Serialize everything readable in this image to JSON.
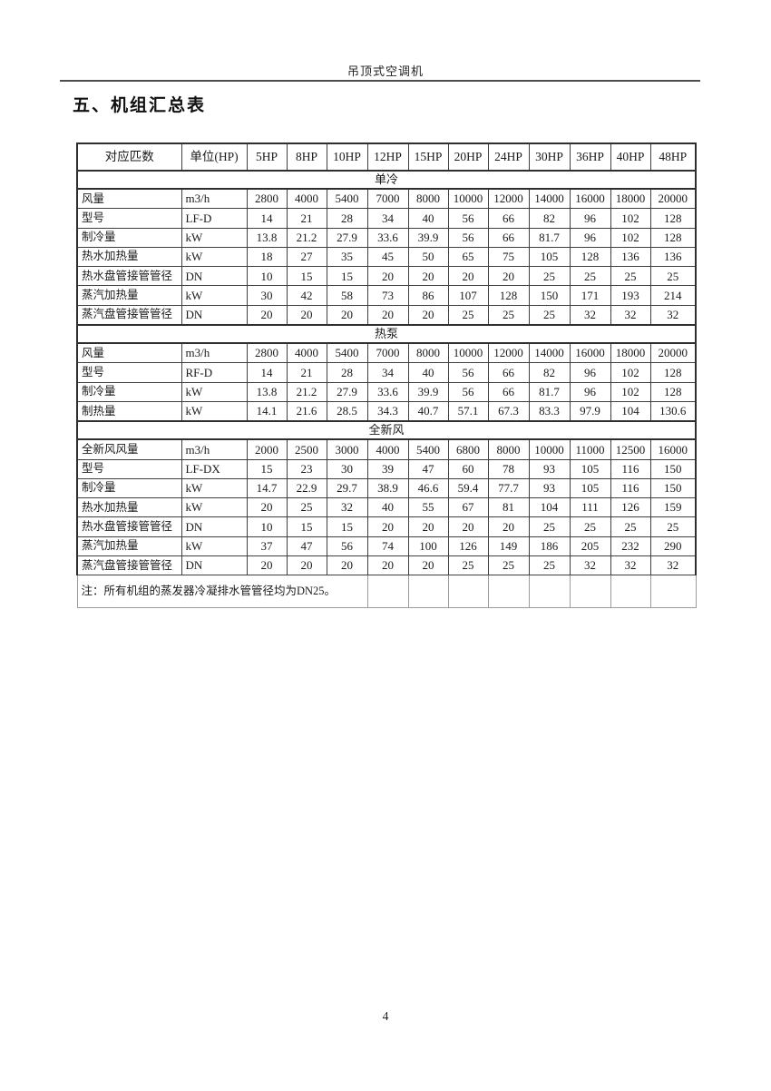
{
  "page_header": {
    "title": "吊顶式空调机"
  },
  "section_title": "五、机组汇总表",
  "footer": {
    "page_number": "4"
  },
  "colors": {
    "border_dark": "#2e2e2e",
    "border_inner": "#3f3f3f",
    "border_note": "#9c9c9c",
    "text": "#1b1b1b"
  },
  "table": {
    "header": {
      "col0": "对应匹数",
      "col1": "单位(HP)",
      "hp_columns": [
        "5HP",
        "8HP",
        "10HP",
        "12HP",
        "15HP",
        "20HP",
        "24HP",
        "30HP",
        "36HP",
        "40HP",
        "48HP"
      ]
    },
    "sections": [
      {
        "title": "单冷",
        "rows": [
          {
            "label": "风量",
            "unit": "m3/h",
            "values": [
              "2800",
              "4000",
              "5400",
              "7000",
              "8000",
              "10000",
              "12000",
              "14000",
              "16000",
              "18000",
              "20000"
            ]
          },
          {
            "label": "型号",
            "unit": "LF-D",
            "values": [
              "14",
              "21",
              "28",
              "34",
              "40",
              "56",
              "66",
              "82",
              "96",
              "102",
              "128"
            ]
          },
          {
            "label": "制冷量",
            "unit": "kW",
            "values": [
              "13.8",
              "21.2",
              "27.9",
              "33.6",
              "39.9",
              "56",
              "66",
              "81.7",
              "96",
              "102",
              "128"
            ]
          },
          {
            "label": "热水加热量",
            "unit": "kW",
            "values": [
              "18",
              "27",
              "35",
              "45",
              "50",
              "65",
              "75",
              "105",
              "128",
              "136",
              "136"
            ]
          },
          {
            "label": "热水盘管接管管径",
            "unit": "DN",
            "values": [
              "10",
              "15",
              "15",
              "20",
              "20",
              "20",
              "20",
              "25",
              "25",
              "25",
              "25"
            ]
          },
          {
            "label": "蒸汽加热量",
            "unit": "kW",
            "values": [
              "30",
              "42",
              "58",
              "73",
              "86",
              "107",
              "128",
              "150",
              "171",
              "193",
              "214"
            ]
          },
          {
            "label": "蒸汽盘管接管管径",
            "unit": "DN",
            "values": [
              "20",
              "20",
              "20",
              "20",
              "20",
              "25",
              "25",
              "25",
              "32",
              "32",
              "32"
            ]
          }
        ]
      },
      {
        "title": "热泵",
        "rows": [
          {
            "label": "风量",
            "unit": "m3/h",
            "values": [
              "2800",
              "4000",
              "5400",
              "7000",
              "8000",
              "10000",
              "12000",
              "14000",
              "16000",
              "18000",
              "20000"
            ]
          },
          {
            "label": "型号",
            "unit": "RF-D",
            "values": [
              "14",
              "21",
              "28",
              "34",
              "40",
              "56",
              "66",
              "82",
              "96",
              "102",
              "128"
            ]
          },
          {
            "label": "制冷量",
            "unit": "kW",
            "values": [
              "13.8",
              "21.2",
              "27.9",
              "33.6",
              "39.9",
              "56",
              "66",
              "81.7",
              "96",
              "102",
              "128"
            ]
          },
          {
            "label": "制热量",
            "unit": "kW",
            "values": [
              "14.1",
              "21.6",
              "28.5",
              "34.3",
              "40.7",
              "57.1",
              "67.3",
              "83.3",
              "97.9",
              "104",
              "130.6"
            ]
          }
        ]
      },
      {
        "title": "全新风",
        "rows": [
          {
            "label": "全新风风量",
            "unit": "m3/h",
            "values": [
              "2000",
              "2500",
              "3000",
              "4000",
              "5400",
              "6800",
              "8000",
              "10000",
              "11000",
              "12500",
              "16000"
            ]
          },
          {
            "label": "型号",
            "unit": "LF-DX",
            "values": [
              "15",
              "23",
              "30",
              "39",
              "47",
              "60",
              "78",
              "93",
              "105",
              "116",
              "150"
            ]
          },
          {
            "label": "制冷量",
            "unit": "kW",
            "values": [
              "14.7",
              "22.9",
              "29.7",
              "38.9",
              "46.6",
              "59.4",
              "77.7",
              "93",
              "105",
              "116",
              "150"
            ]
          },
          {
            "label": "热水加热量",
            "unit": "kW",
            "values": [
              "20",
              "25",
              "32",
              "40",
              "55",
              "67",
              "81",
              "104",
              "111",
              "126",
              "159"
            ]
          },
          {
            "label": "热水盘管接管管径",
            "unit": "DN",
            "values": [
              "10",
              "15",
              "15",
              "20",
              "20",
              "20",
              "20",
              "25",
              "25",
              "25",
              "25"
            ]
          },
          {
            "label": "蒸汽加热量",
            "unit": "kW",
            "values": [
              "37",
              "47",
              "56",
              "74",
              "100",
              "126",
              "149",
              "186",
              "205",
              "232",
              "290"
            ]
          },
          {
            "label": "蒸汽盘管接管管径",
            "unit": "DN",
            "values": [
              "20",
              "20",
              "20",
              "20",
              "20",
              "25",
              "25",
              "25",
              "32",
              "32",
              "32"
            ]
          }
        ]
      }
    ],
    "note": "注：所有机组的蒸发器冷凝排水管管径均为DN25。",
    "note_span_cols": 5
  }
}
